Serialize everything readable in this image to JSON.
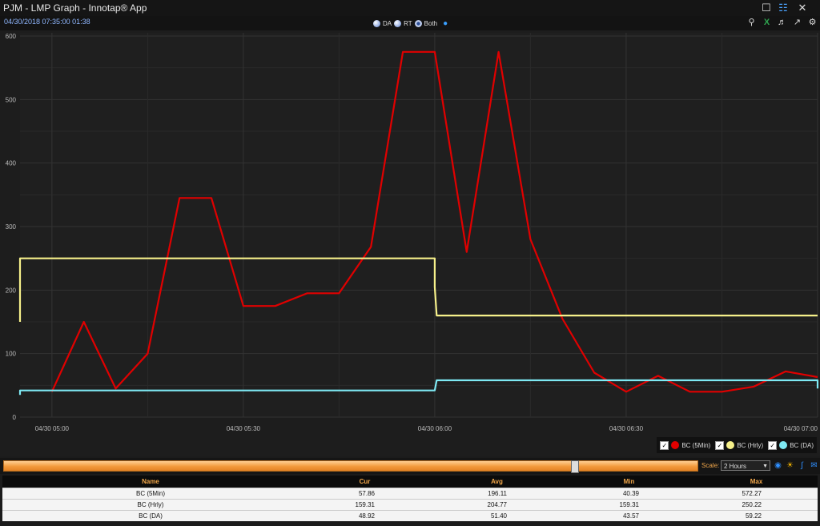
{
  "window": {
    "title": "PJM - LMP Graph - Innotap® App",
    "maximize_glyph": "☐",
    "layout_glyph": "☷",
    "close_glyph": "✕"
  },
  "toolbar": {
    "timestamp": "04/30/2018 07:35:00  01:38",
    "radio_da": "DA",
    "radio_rt": "RT",
    "radio_both": "Both",
    "selected_radio": "Both",
    "icons": [
      "search-icon",
      "excel-icon",
      "speaker-icon",
      "export-icon",
      "gear-icon"
    ]
  },
  "chart_data": {
    "type": "line",
    "title": "",
    "xlabel": "",
    "ylabel": "",
    "x_range": [
      "04/30 04:55",
      "07:00"
    ],
    "ylim": [
      0,
      600
    ],
    "yticks": [
      0,
      100,
      200,
      300,
      400,
      500,
      600
    ],
    "xticks": [
      {
        "label": "04/30 05:00",
        "t": 5
      },
      {
        "label": "04/30 05:30",
        "t": 35
      },
      {
        "label": "04/30 06:00",
        "t": 65
      },
      {
        "label": "04/30 06:30",
        "t": 95
      },
      {
        "label": "04/30 07:00",
        "t": 125
      }
    ],
    "grid": true,
    "background": "#1d1d1d",
    "series": [
      {
        "name": "BC (5Min)",
        "color": "#e00000",
        "points": [
          [
            5,
            40
          ],
          [
            10,
            150
          ],
          [
            15,
            45
          ],
          [
            20,
            100
          ],
          [
            25,
            345
          ],
          [
            30,
            345
          ],
          [
            35,
            175
          ],
          [
            40,
            175
          ],
          [
            45,
            195
          ],
          [
            50,
            195
          ],
          [
            55,
            268
          ],
          [
            60,
            575
          ],
          [
            65,
            575
          ],
          [
            70,
            260
          ],
          [
            75,
            575
          ],
          [
            80,
            280
          ],
          [
            85,
            155
          ],
          [
            90,
            70
          ],
          [
            95,
            40
          ],
          [
            100,
            65
          ],
          [
            105,
            40
          ],
          [
            110,
            40
          ],
          [
            115,
            48
          ],
          [
            120,
            72
          ],
          [
            125,
            63
          ]
        ]
      },
      {
        "name": "BC (Hrly)",
        "color": "#f6f08a",
        "points": [
          [
            0,
            150
          ],
          [
            0,
            250
          ],
          [
            65,
            250
          ],
          [
            65,
            205
          ],
          [
            65.3,
            160
          ],
          [
            125,
            160
          ]
        ]
      },
      {
        "name": "BC (DA)",
        "color": "#7ee8f2",
        "points": [
          [
            0,
            35
          ],
          [
            0,
            42
          ],
          [
            65,
            42
          ],
          [
            65.3,
            58
          ],
          [
            125,
            58
          ],
          [
            125,
            45
          ]
        ]
      }
    ]
  },
  "legend": {
    "placement": "bottom-right",
    "items": [
      {
        "label": "BC (5Min)",
        "color": "#e00000",
        "checked": true
      },
      {
        "label": "BC (Hrly)",
        "color": "#f6f08a",
        "checked": true
      },
      {
        "label": "BC (DA)",
        "color": "#7ee8f2",
        "checked": true
      }
    ]
  },
  "scalebar": {
    "scale_label": "Scale:",
    "scale_value": "2 Hours",
    "position_fraction": 0.82,
    "icons": [
      "eye-icon",
      "sun-icon",
      "curve-icon",
      "email-icon"
    ]
  },
  "summary_table": {
    "columns": [
      "Name",
      "Cur",
      "Avg",
      "Min",
      "Max"
    ],
    "rows": [
      [
        "BC (5Min)",
        "57.86",
        "196.11",
        "40.39",
        "572.27"
      ],
      [
        "BC (Hrly)",
        "159.31",
        "204.77",
        "159.31",
        "250.22"
      ],
      [
        "BC (DA)",
        "48.92",
        "51.40",
        "43.57",
        "59.22"
      ]
    ]
  }
}
